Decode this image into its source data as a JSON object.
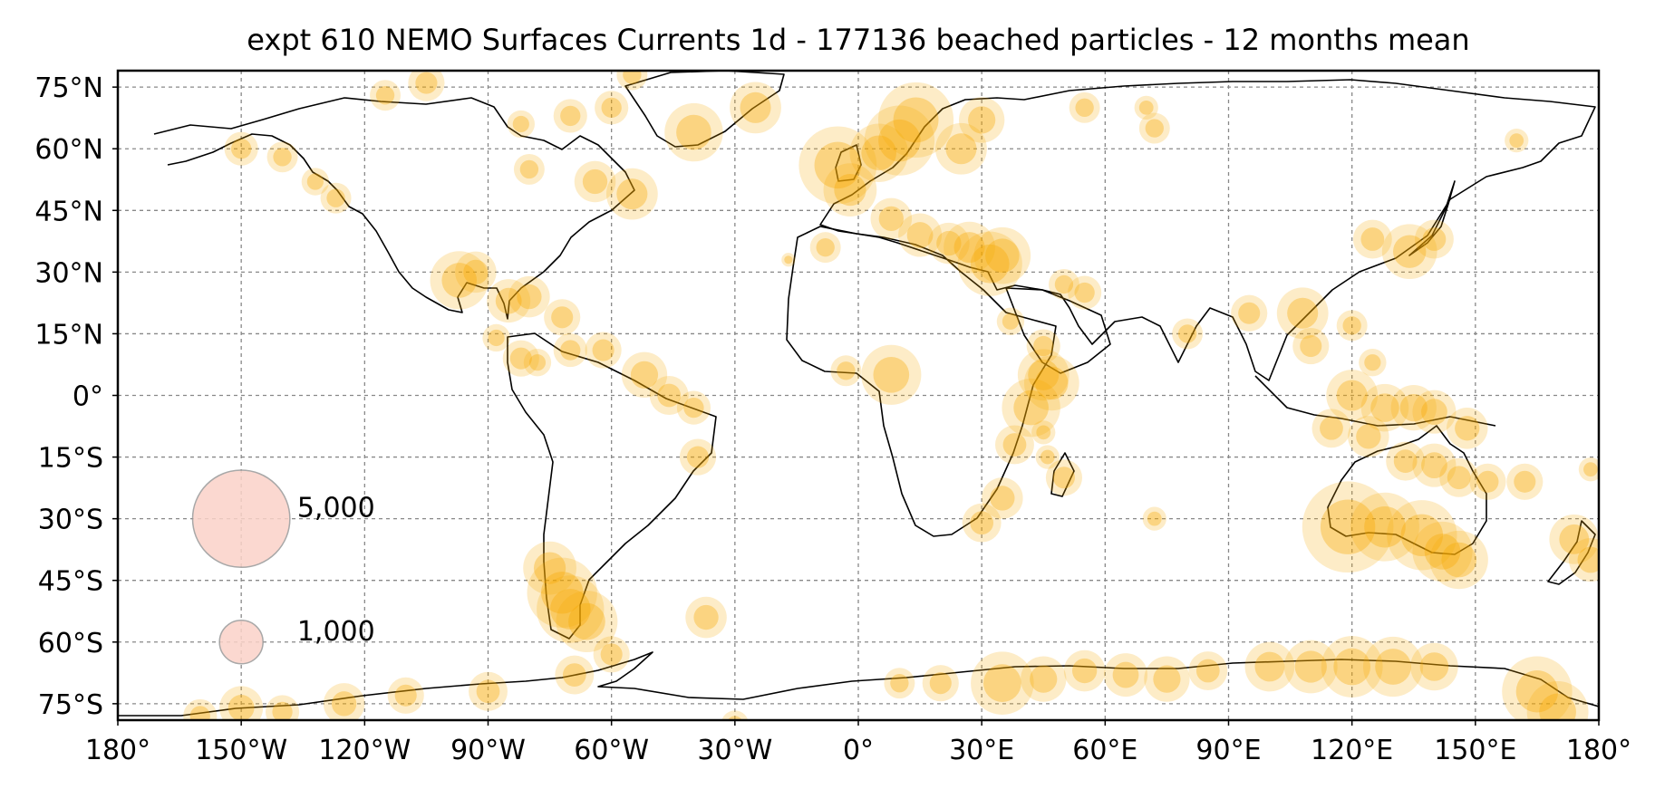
{
  "title": "expt 610 NEMO Surfaces Currents 1d - 177136 beached particles - 12 months mean",
  "x_ticks": [
    "180°",
    "150°W",
    "120°W",
    "90°W",
    "60°W",
    "30°W",
    "0°",
    "30°E",
    "60°E",
    "90°E",
    "120°E",
    "150°E",
    "180°"
  ],
  "x_tick_values": [
    -180,
    -150,
    -120,
    -90,
    -60,
    -30,
    0,
    30,
    60,
    90,
    120,
    150,
    180
  ],
  "y_ticks": [
    "75°N",
    "60°N",
    "45°N",
    "30°N",
    "15°N",
    "0°",
    "15°S",
    "30°S",
    "45°S",
    "60°S",
    "75°S"
  ],
  "y_tick_values": [
    75,
    60,
    45,
    30,
    15,
    0,
    -15,
    -30,
    -45,
    -60,
    -75
  ],
  "extent": {
    "lon": [
      -180,
      180
    ],
    "lat": [
      -79,
      79
    ]
  },
  "legend": [
    {
      "label": "5,000",
      "value": 5000
    },
    {
      "label": "1,000",
      "value": 1000
    }
  ],
  "colors": {
    "marker": "#f6a800",
    "legend_fill": "#fbd2c8",
    "legend_edge": "#999999",
    "coastline": "#000000",
    "grid": "#888888"
  },
  "chart_data": {
    "type": "scatter",
    "projection": "PlateCarree",
    "title": "expt 610 NEMO Surfaces Currents 1d - 177136 beached particles - 12 months mean",
    "xlim": [
      -180,
      180
    ],
    "ylim": [
      -79,
      79
    ],
    "grid": true,
    "size_legend": [
      {
        "label": "5,000",
        "value": 5000
      },
      {
        "label": "1,000",
        "value": 1000
      }
    ],
    "legend_position": "lower-left",
    "series": [
      {
        "values": [
          [
            -150,
            60,
            600
          ],
          [
            -140,
            58,
            500
          ],
          [
            -132,
            52,
            400
          ],
          [
            -127,
            48,
            500
          ],
          [
            -97,
            28,
            1800
          ],
          [
            -93,
            30,
            900
          ],
          [
            -85,
            23,
            1000
          ],
          [
            -80,
            24,
            900
          ],
          [
            -72,
            19,
            700
          ],
          [
            -88,
            14,
            400
          ],
          [
            -82,
            9,
            700
          ],
          [
            -78,
            8,
            400
          ],
          [
            -70,
            11,
            600
          ],
          [
            -62,
            11,
            700
          ],
          [
            -52,
            5,
            1100
          ],
          [
            -46,
            0,
            800
          ],
          [
            -40,
            -3,
            600
          ],
          [
            -39,
            -15,
            700
          ],
          [
            -75,
            -42,
            1500
          ],
          [
            -72,
            -48,
            2600
          ],
          [
            -70,
            -52,
            2400
          ],
          [
            -66,
            -55,
            2000
          ],
          [
            -37,
            -54,
            900
          ],
          [
            -60,
            -63,
            700
          ],
          [
            -69,
            -68,
            800
          ],
          [
            -90,
            -72,
            800
          ],
          [
            -110,
            -73,
            700
          ],
          [
            -125,
            -75,
            900
          ],
          [
            -150,
            -76,
            1000
          ],
          [
            -30,
            -80,
            400
          ],
          [
            -82,
            66,
            400
          ],
          [
            -70,
            68,
            600
          ],
          [
            -60,
            70,
            600
          ],
          [
            -40,
            64,
            1800
          ],
          [
            -25,
            70,
            1400
          ],
          [
            -55,
            78,
            500
          ],
          [
            -64,
            52,
            900
          ],
          [
            -55,
            49,
            1400
          ],
          [
            -80,
            55,
            500
          ],
          [
            -105,
            76,
            700
          ],
          [
            -115,
            73,
            500
          ],
          [
            -5,
            56,
            3200
          ],
          [
            -2,
            50,
            1500
          ],
          [
            5,
            59,
            1800
          ],
          [
            10,
            62,
            2600
          ],
          [
            14,
            67,
            3000
          ],
          [
            25,
            60,
            1400
          ],
          [
            30,
            67,
            1100
          ],
          [
            8,
            43,
            900
          ],
          [
            15,
            39,
            1000
          ],
          [
            27,
            36,
            1400
          ],
          [
            32,
            32,
            2200
          ],
          [
            35,
            34,
            1700
          ],
          [
            22,
            37,
            900
          ],
          [
            -8,
            36,
            500
          ],
          [
            -17,
            33,
            100
          ],
          [
            50,
            27,
            500
          ],
          [
            55,
            25,
            600
          ],
          [
            37,
            18,
            400
          ],
          [
            45,
            12,
            600
          ],
          [
            8,
            5,
            1900
          ],
          [
            -3,
            6,
            500
          ],
          [
            47,
            3,
            1600
          ],
          [
            42,
            -3,
            1800
          ],
          [
            45,
            5,
            1400
          ],
          [
            38,
            -12,
            800
          ],
          [
            45,
            -9,
            300
          ],
          [
            35,
            -25,
            900
          ],
          [
            30,
            -31,
            800
          ],
          [
            50,
            -20,
            700
          ],
          [
            46,
            -15,
            300
          ],
          [
            72,
            -30,
            300
          ],
          [
            80,
            15,
            500
          ],
          [
            95,
            20,
            700
          ],
          [
            108,
            20,
            1400
          ],
          [
            110,
            12,
            700
          ],
          [
            120,
            17,
            500
          ],
          [
            125,
            8,
            400
          ],
          [
            120,
            0,
            1400
          ],
          [
            128,
            -3,
            1200
          ],
          [
            135,
            -3,
            1100
          ],
          [
            140,
            -4,
            1000
          ],
          [
            148,
            -8,
            900
          ],
          [
            115,
            -8,
            800
          ],
          [
            124,
            -10,
            900
          ],
          [
            133,
            -16,
            800
          ],
          [
            140,
            -17,
            1000
          ],
          [
            146,
            -20,
            800
          ],
          [
            153,
            -21,
            700
          ],
          [
            119,
            -32,
            4400
          ],
          [
            128,
            -32,
            2500
          ],
          [
            137,
            -34,
            2600
          ],
          [
            142,
            -38,
            1900
          ],
          [
            146,
            -40,
            1800
          ],
          [
            162,
            -21,
            700
          ],
          [
            174,
            -35,
            1300
          ],
          [
            178,
            -40,
            1000
          ],
          [
            178,
            -18,
            300
          ],
          [
            125,
            38,
            800
          ],
          [
            134,
            35,
            1600
          ],
          [
            140,
            38,
            800
          ],
          [
            160,
            62,
            300
          ],
          [
            72,
            65,
            500
          ],
          [
            55,
            70,
            500
          ],
          [
            70,
            70,
            300
          ],
          [
            10,
            -70,
            500
          ],
          [
            20,
            -70,
            700
          ],
          [
            35,
            -70,
            2100
          ],
          [
            45,
            -69,
            1100
          ],
          [
            55,
            -67,
            900
          ],
          [
            65,
            -68,
            1000
          ],
          [
            75,
            -69,
            1100
          ],
          [
            85,
            -67,
            800
          ],
          [
            100,
            -66,
            1300
          ],
          [
            110,
            -66,
            1500
          ],
          [
            120,
            -66,
            2000
          ],
          [
            130,
            -66,
            1900
          ],
          [
            140,
            -66,
            1200
          ],
          [
            165,
            -72,
            2600
          ],
          [
            170,
            -77,
            2000
          ],
          [
            -160,
            -78,
            600
          ],
          [
            -140,
            -77,
            600
          ]
        ]
      }
    ]
  }
}
